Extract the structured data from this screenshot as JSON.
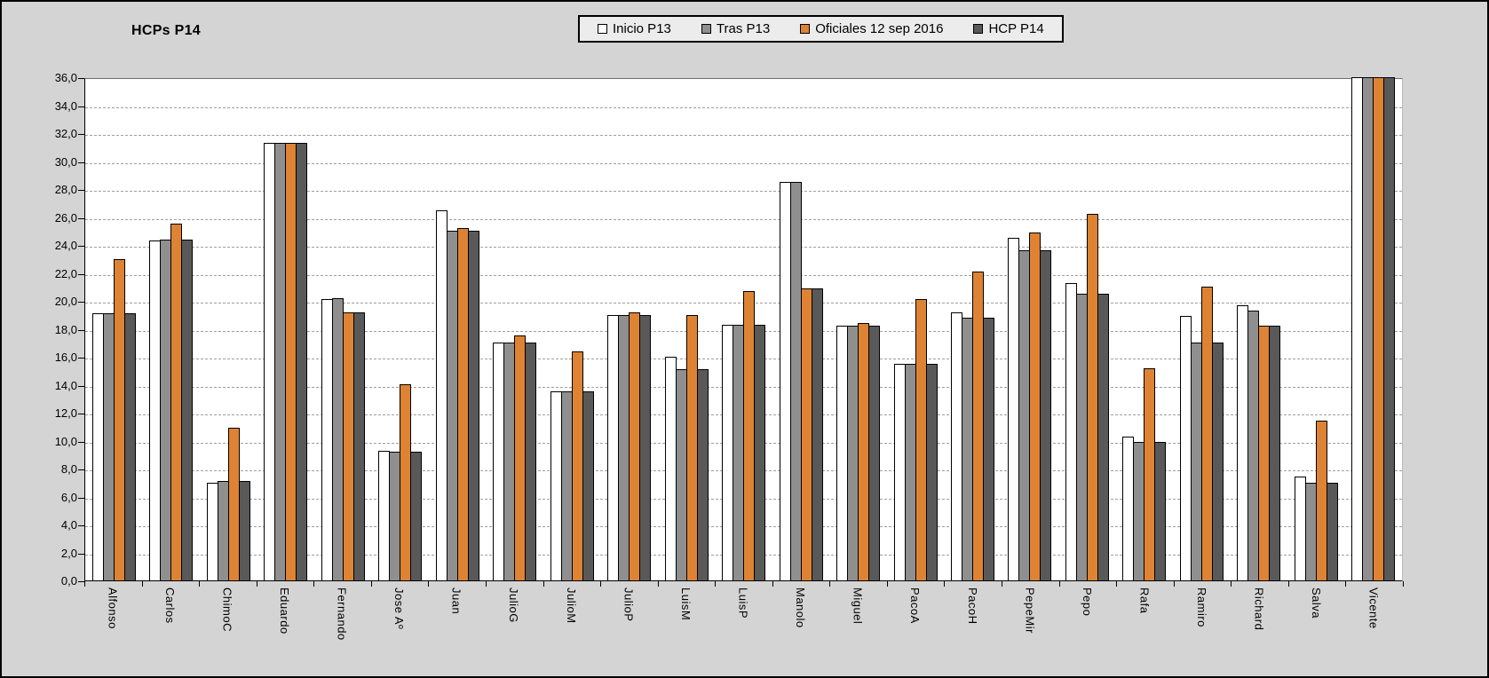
{
  "title": "HCPs P14",
  "chart_data": {
    "type": "bar",
    "title": "HCPs P14",
    "categories": [
      "Alfonso",
      "Carlos",
      "ChimoC",
      "Eduardo",
      "Fernando",
      "Jose Aº",
      "Juan",
      "JulioG",
      "JulioM",
      "JulioP",
      "LuisM",
      "LuisP",
      "Manolo",
      "Miguel",
      "PacoA",
      "PacoH",
      "PepeMir",
      "Pepo",
      "Rafa",
      "Ramiro",
      "Richard",
      "Salva",
      "Vicente"
    ],
    "series": [
      {
        "name": "Inicio P13",
        "color": "#FFFFFF",
        "values": [
          19.1,
          24.3,
          7.0,
          31.3,
          20.1,
          9.3,
          26.5,
          17.0,
          13.5,
          19.0,
          16.0,
          18.3,
          28.5,
          18.2,
          15.5,
          19.2,
          24.5,
          21.3,
          10.3,
          18.9,
          19.7,
          7.4,
          36.0
        ]
      },
      {
        "name": "Tras P13",
        "color": "#8F8F8F",
        "values": [
          19.1,
          24.4,
          7.1,
          31.3,
          20.2,
          9.2,
          25.0,
          17.0,
          13.5,
          19.0,
          15.1,
          18.3,
          28.5,
          18.2,
          15.5,
          18.8,
          23.6,
          20.5,
          9.9,
          17.0,
          19.3,
          7.0,
          36.0
        ]
      },
      {
        "name": "Oficiales 12 sep 2016",
        "color": "#DE8334",
        "values": [
          23.0,
          25.5,
          10.9,
          31.3,
          19.2,
          14.0,
          25.2,
          17.5,
          16.4,
          19.2,
          19.0,
          20.7,
          20.9,
          18.4,
          20.1,
          22.1,
          24.9,
          26.2,
          15.2,
          21.0,
          18.2,
          11.4,
          36.0
        ]
      },
      {
        "name": "HCP P14",
        "color": "#595959",
        "values": [
          19.1,
          24.4,
          7.1,
          31.3,
          19.2,
          9.2,
          25.0,
          17.0,
          13.5,
          19.0,
          15.1,
          18.3,
          20.9,
          18.2,
          15.5,
          18.8,
          23.6,
          20.5,
          9.9,
          17.0,
          18.2,
          7.0,
          36.0
        ]
      }
    ],
    "ylim": [
      0,
      36
    ],
    "ytick_step": 2,
    "decimal_separator": ",",
    "grid": true,
    "legend_position": "top-center",
    "plot_background": "#FFFFFF",
    "page_background": "#D4D4D4",
    "gridline_color": "#9E9E9E"
  }
}
